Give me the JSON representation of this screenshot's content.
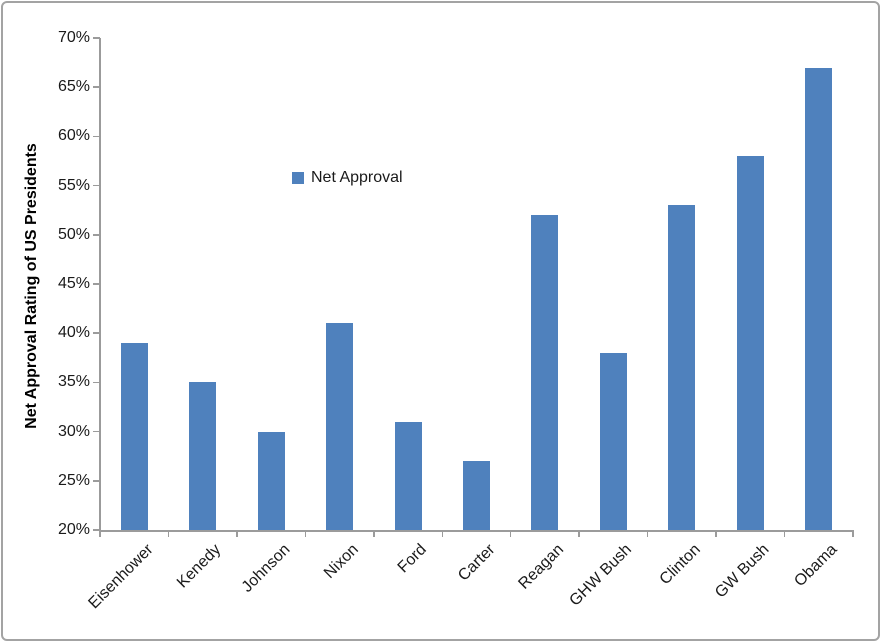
{
  "chart_data": {
    "type": "bar",
    "title": "",
    "categories": [
      "Eisenhower",
      "Kenedy",
      "Johnson",
      "Nixon",
      "Ford",
      "Carter",
      "Reagan",
      "GHW Bush",
      "Clinton",
      "GW Bush",
      "Obama"
    ],
    "series": [
      {
        "name": "Net Approval",
        "values": [
          39,
          35,
          30,
          41,
          31,
          27,
          52,
          38,
          53,
          58,
          67
        ]
      }
    ],
    "xlabel": "",
    "ylabel": "Net Approval Rating of US Presidents",
    "ylim": [
      20,
      70
    ],
    "ytick_step": 5,
    "ytick_labels": [
      "20%",
      "25%",
      "30%",
      "35%",
      "40%",
      "45%",
      "50%",
      "55%",
      "60%",
      "65%",
      "70%"
    ],
    "grid": false,
    "legend": {
      "label": "Net Approval",
      "position": "inside-upper-left"
    },
    "colors": {
      "bar": "#4F81BD",
      "axis": "#9B9B9B",
      "text": "#1A1A1A",
      "frame_border": "#A3A3A3",
      "background": "#FFFFFF"
    }
  }
}
